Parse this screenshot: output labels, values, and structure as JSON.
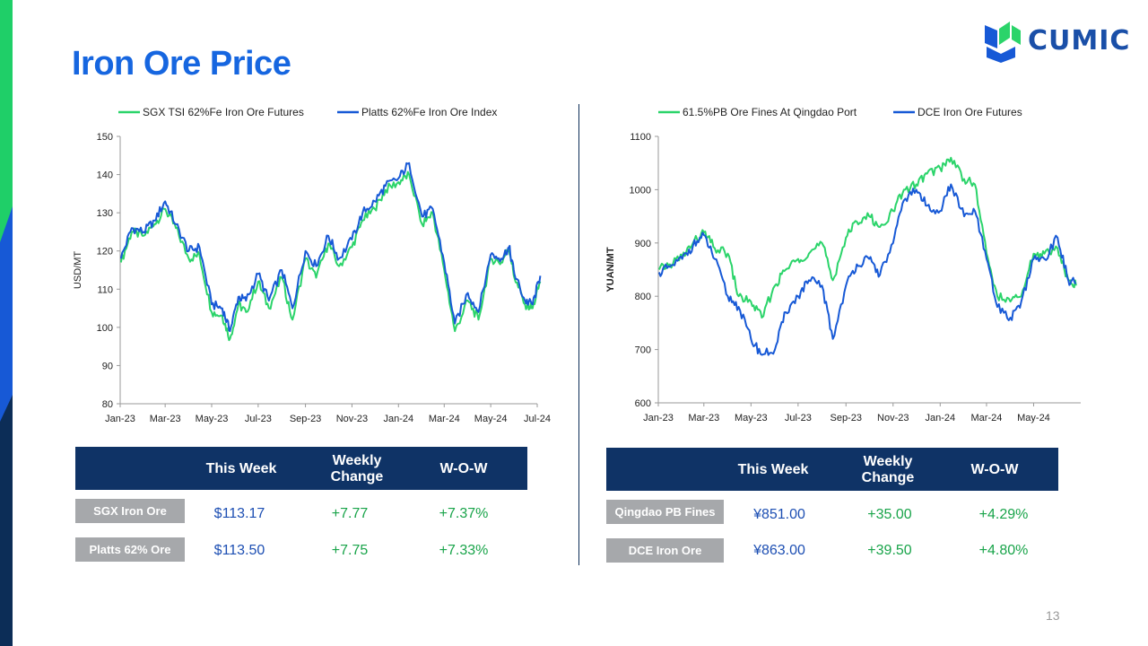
{
  "page": {
    "title": "Iron Ore Price",
    "page_number": "13"
  },
  "logo": {
    "text": "CUMIC"
  },
  "colors": {
    "series_green": "#2bd46a",
    "series_blue": "#1759d6",
    "header_bg": "#0f3366",
    "label_bg": "#a6a8ab",
    "title_blue": "#1666e0"
  },
  "chart_data": [
    {
      "type": "line",
      "ylabel": "USD/MT",
      "xlabel": "",
      "ylim": [
        80,
        150
      ],
      "yticks": [
        "80",
        "90",
        "100",
        "110",
        "120",
        "130",
        "140",
        "150"
      ],
      "x_tick_labels": [
        "Jan-23",
        "Mar-23",
        "May-23",
        "Jul-23",
        "Sep-23",
        "Nov-23",
        "Jan-24",
        "Mar-24",
        "May-24",
        "Jul-24"
      ],
      "legend_position": "top",
      "series": [
        {
          "name": "SGX TSI 62%Fe Iron Ore Futures",
          "color": "#2bd46a",
          "x": [
            "2023-01-02",
            "2023-01-16",
            "2023-02-01",
            "2023-02-15",
            "2023-03-01",
            "2023-03-15",
            "2023-04-01",
            "2023-04-15",
            "2023-05-01",
            "2023-05-15",
            "2023-05-25",
            "2023-06-05",
            "2023-06-15",
            "2023-07-01",
            "2023-07-15",
            "2023-08-01",
            "2023-08-15",
            "2023-09-01",
            "2023-09-15",
            "2023-10-01",
            "2023-10-15",
            "2023-11-01",
            "2023-11-15",
            "2023-12-01",
            "2023-12-15",
            "2024-01-01",
            "2024-01-15",
            "2024-02-01",
            "2024-02-15",
            "2024-03-01",
            "2024-03-15",
            "2024-04-01",
            "2024-04-15",
            "2024-05-01",
            "2024-05-15",
            "2024-05-25",
            "2024-06-01",
            "2024-06-15",
            "2024-06-25",
            "2024-07-05"
          ],
          "values": [
            117,
            125,
            124,
            127,
            131,
            126,
            118,
            119,
            104,
            103,
            97,
            106,
            104,
            112,
            105,
            113,
            102,
            118,
            113,
            122,
            116,
            121,
            128,
            131,
            136,
            138,
            140,
            127,
            130,
            115,
            99,
            107,
            102,
            118,
            117,
            121,
            113,
            106,
            105,
            112
          ]
        },
        {
          "name": "Platts 62%Fe Iron Ore Index",
          "color": "#1759d6",
          "x": [
            "2023-01-02",
            "2023-01-16",
            "2023-02-01",
            "2023-02-15",
            "2023-03-01",
            "2023-03-15",
            "2023-04-01",
            "2023-04-15",
            "2023-05-01",
            "2023-05-15",
            "2023-05-25",
            "2023-06-05",
            "2023-06-15",
            "2023-07-01",
            "2023-07-15",
            "2023-08-01",
            "2023-08-15",
            "2023-09-01",
            "2023-09-15",
            "2023-10-01",
            "2023-10-15",
            "2023-11-01",
            "2023-11-15",
            "2023-12-01",
            "2023-12-15",
            "2024-01-01",
            "2024-01-15",
            "2024-02-01",
            "2024-02-15",
            "2024-03-01",
            "2024-03-15",
            "2024-04-01",
            "2024-04-15",
            "2024-05-01",
            "2024-05-15",
            "2024-05-25",
            "2024-06-01",
            "2024-06-15",
            "2024-06-25",
            "2024-07-05"
          ],
          "values": [
            118,
            126,
            125,
            128,
            133,
            127,
            120,
            121,
            106,
            105,
            99,
            108,
            107,
            114,
            107,
            115,
            105,
            120,
            116,
            124,
            118,
            123,
            130,
            133,
            137,
            139,
            143,
            129,
            131,
            117,
            101,
            109,
            104,
            119,
            118,
            121,
            114,
            107,
            106,
            113.5
          ]
        }
      ]
    },
    {
      "type": "line",
      "ylabel": "YUAN/MT",
      "xlabel": "",
      "ylim": [
        600,
        1100
      ],
      "yticks": [
        "600",
        "700",
        "800",
        "900",
        "1000",
        "1100"
      ],
      "x_tick_labels": [
        "Jan-23",
        "Mar-23",
        "May-23",
        "Jul-23",
        "Sep-23",
        "Nov-23",
        "Jan-24",
        "Mar-24",
        "May-24"
      ],
      "legend_position": "top",
      "series": [
        {
          "name": "61.5%PB Ore Fines At Qingdao Port",
          "color": "#2bd46a",
          "x": [
            "2023-01-02",
            "2023-01-16",
            "2023-02-01",
            "2023-02-15",
            "2023-03-01",
            "2023-03-15",
            "2023-04-01",
            "2023-04-15",
            "2023-05-01",
            "2023-05-15",
            "2023-06-01",
            "2023-06-15",
            "2023-07-01",
            "2023-07-15",
            "2023-08-01",
            "2023-08-15",
            "2023-09-01",
            "2023-09-15",
            "2023-10-01",
            "2023-10-15",
            "2023-11-01",
            "2023-11-15",
            "2023-12-01",
            "2023-12-15",
            "2024-01-01",
            "2024-01-15",
            "2024-02-01",
            "2024-02-15",
            "2024-03-01",
            "2024-03-15",
            "2024-04-01",
            "2024-04-15",
            "2024-05-01",
            "2024-05-15",
            "2024-06-01",
            "2024-06-15",
            "2024-06-25"
          ],
          "values": [
            850,
            860,
            875,
            900,
            920,
            890,
            880,
            800,
            790,
            760,
            820,
            850,
            870,
            880,
            900,
            830,
            910,
            940,
            950,
            930,
            960,
            1000,
            1010,
            1030,
            1040,
            1060,
            1020,
            1010,
            880,
            800,
            790,
            800,
            880,
            880,
            890,
            830,
            820
          ]
        },
        {
          "name": "DCE Iron Ore Futures",
          "color": "#1759d6",
          "x": [
            "2023-01-02",
            "2023-01-16",
            "2023-02-01",
            "2023-02-15",
            "2023-03-01",
            "2023-03-15",
            "2023-04-01",
            "2023-04-15",
            "2023-05-01",
            "2023-05-15",
            "2023-06-01",
            "2023-06-15",
            "2023-07-01",
            "2023-07-15",
            "2023-08-01",
            "2023-08-15",
            "2023-09-01",
            "2023-09-15",
            "2023-10-01",
            "2023-10-15",
            "2023-11-01",
            "2023-11-15",
            "2023-12-01",
            "2023-12-15",
            "2024-01-01",
            "2024-01-15",
            "2024-02-01",
            "2024-02-15",
            "2024-03-01",
            "2024-03-15",
            "2024-04-01",
            "2024-04-15",
            "2024-05-01",
            "2024-05-15",
            "2024-06-01",
            "2024-06-15",
            "2024-06-25"
          ],
          "values": [
            845,
            855,
            870,
            895,
            915,
            870,
            800,
            780,
            720,
            690,
            700,
            770,
            800,
            830,
            820,
            720,
            820,
            860,
            870,
            840,
            900,
            980,
            1000,
            970,
            960,
            1010,
            950,
            960,
            870,
            780,
            760,
            790,
            870,
            870,
            910,
            830,
            825
          ]
        }
      ]
    }
  ],
  "tables": [
    {
      "headers": [
        "This Week",
        "Weekly\nChange",
        "W-O-W"
      ],
      "rows": [
        {
          "label": "SGX Iron Ore",
          "this_week": "$113.17",
          "weekly_change": "+7.77",
          "wow": "+7.37%"
        },
        {
          "label": "Platts 62% Ore",
          "this_week": "$113.50",
          "weekly_change": "+7.75",
          "wow": "+7.33%"
        }
      ]
    },
    {
      "headers": [
        "This Week",
        "Weekly\nChange",
        "W-O-W"
      ],
      "rows": [
        {
          "label": "Qingdao PB Fines",
          "this_week": "¥851.00",
          "weekly_change": "+35.00",
          "wow": "+4.29%"
        },
        {
          "label": "DCE Iron Ore",
          "this_week": "¥863.00",
          "weekly_change": "+39.50",
          "wow": "+4.80%"
        }
      ]
    }
  ]
}
